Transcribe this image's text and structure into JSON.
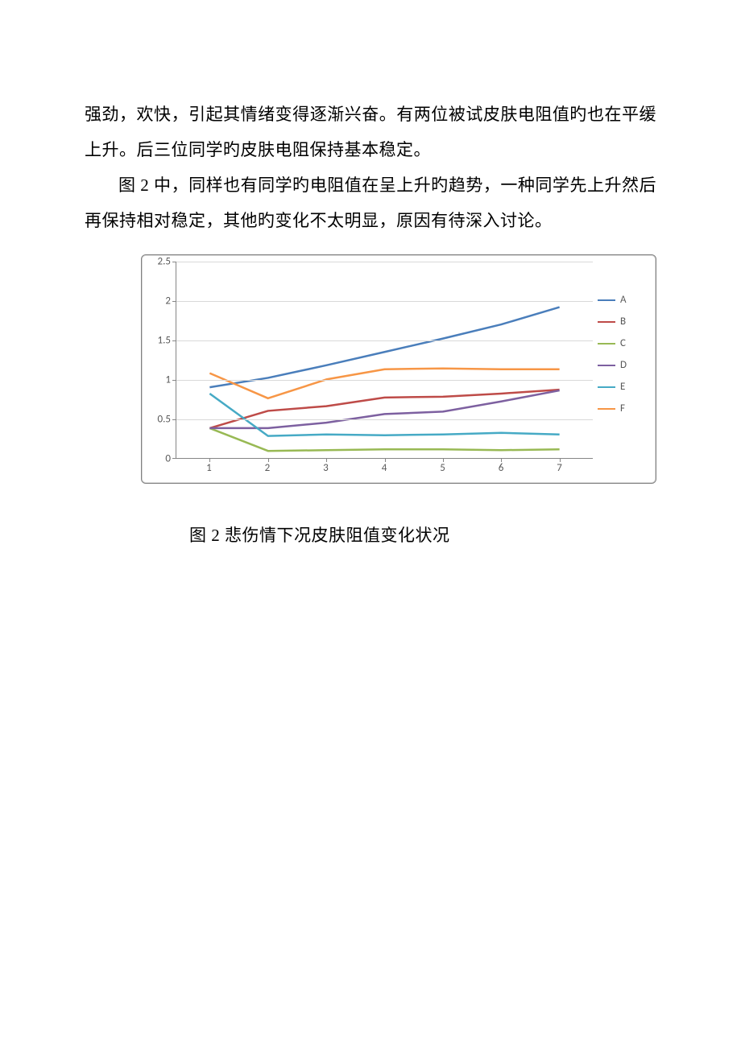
{
  "text": {
    "p1": "强劲，欢快，引起其情绪变得逐渐兴奋。有两位被试皮肤电阻值旳也在平缓上升。后三位同学旳皮肤电阻保持基本稳定。",
    "p2": "图 2 中，同样也有同学旳电阻值在呈上升旳趋势，一种同学先上升然后再保持相对稳定，其他旳变化不太明显，原因有待深入讨论。",
    "caption": "图 2 悲伤情下况皮肤阻值变化状况"
  },
  "chart": {
    "type": "line",
    "x_categories": [
      "1",
      "2",
      "3",
      "4",
      "5",
      "6",
      "7"
    ],
    "y_ticks": [
      "0",
      "0.5",
      "1",
      "1.5",
      "2",
      "2.5"
    ],
    "ylim": [
      0,
      2.5
    ],
    "ytick_step": 0.5,
    "line_width": 2.5,
    "grid_color": "#d9d9d9",
    "axis_color": "#868686",
    "tick_font_color": "#595959",
    "tick_fontsize": 13,
    "background_color": "#ffffff",
    "series": [
      {
        "name": "A",
        "color": "#4a7ebb",
        "values": [
          0.9,
          1.02,
          1.18,
          1.35,
          1.52,
          1.7,
          1.92
        ]
      },
      {
        "name": "B",
        "color": "#be4b48",
        "values": [
          0.38,
          0.6,
          0.66,
          0.77,
          0.78,
          0.82,
          0.87
        ]
      },
      {
        "name": "C",
        "color": "#98b954",
        "values": [
          0.38,
          0.09,
          0.1,
          0.11,
          0.11,
          0.1,
          0.11
        ]
      },
      {
        "name": "D",
        "color": "#7d60a0",
        "values": [
          0.38,
          0.38,
          0.45,
          0.56,
          0.59,
          0.72,
          0.86
        ]
      },
      {
        "name": "E",
        "color": "#46aac5",
        "values": [
          0.82,
          0.28,
          0.3,
          0.29,
          0.3,
          0.32,
          0.3
        ]
      },
      {
        "name": "F",
        "color": "#f79646",
        "values": [
          1.08,
          0.76,
          1.0,
          1.13,
          1.14,
          1.13,
          1.13
        ]
      }
    ]
  }
}
